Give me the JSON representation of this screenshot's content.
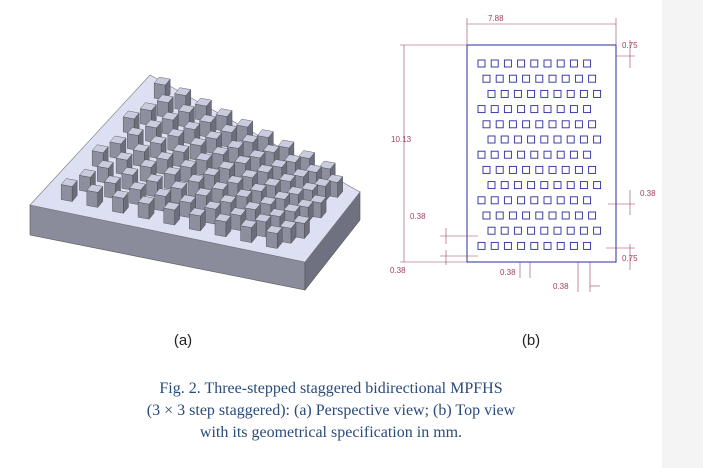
{
  "panel_a": {
    "label": "(a)"
  },
  "panel_b": {
    "label": "(b)",
    "dimensions": [
      7.88,
      0.75,
      10.13,
      0.38,
      0.38,
      0.75,
      0.38,
      0.38,
      0.38
    ]
  },
  "caption": [
    "Fig. 2. Three-stepped staggered bidirectional MPFHS",
    "(3 × 3 step staggered): (a) Perspective view; (b) Top view",
    "with its geometrical specification in mm."
  ]
}
